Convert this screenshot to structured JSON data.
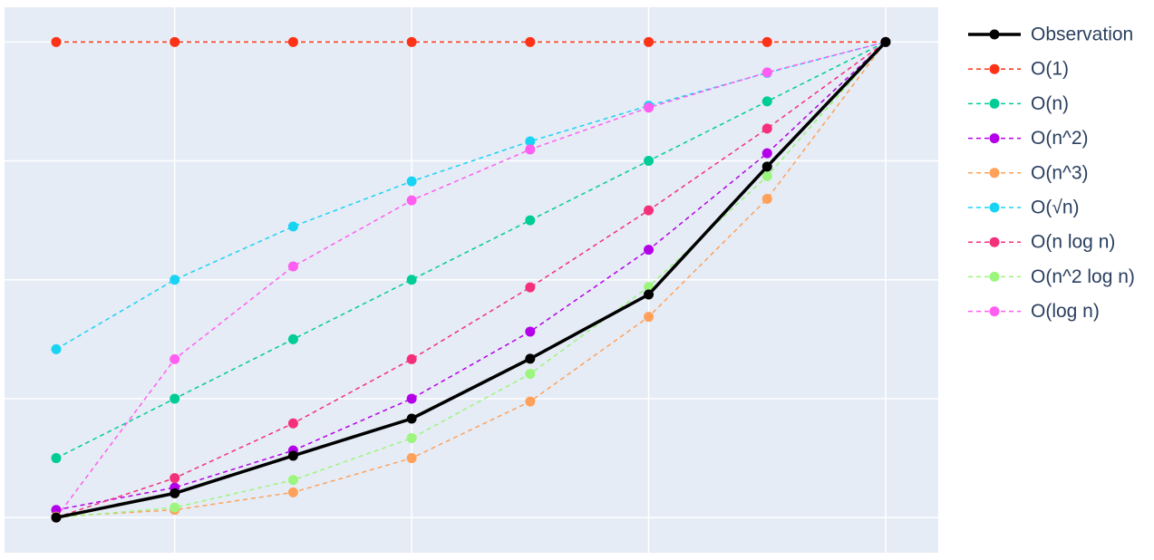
{
  "chart_data": {
    "type": "line",
    "x": [
      1,
      2,
      3,
      4,
      5,
      6,
      7,
      8
    ],
    "xlim": [
      0.564,
      8.444
    ],
    "xticks": [
      2,
      4,
      6,
      8
    ],
    "ylim": [
      -0.074,
      1.073
    ],
    "yticks": [
      0,
      0.25,
      0.5,
      0.75,
      1
    ],
    "grid": true,
    "legend": "right",
    "series": [
      {
        "name": "Observation",
        "color": "#000000",
        "dash": "solid",
        "values": [
          0,
          0.051,
          0.13,
          0.208,
          0.334,
          0.469,
          0.738,
          1
        ]
      },
      {
        "name": "O(1)",
        "color": "#fd3216",
        "dash": "dash",
        "values": [
          1,
          1,
          1,
          1,
          1,
          1,
          1,
          1
        ]
      },
      {
        "name": "O(n)",
        "color": "#00cc96",
        "dash": "dash",
        "values": [
          0.125,
          0.25,
          0.375,
          0.5,
          0.625,
          0.75,
          0.875,
          1
        ]
      },
      {
        "name": "O(n^2)",
        "color": "#b400e8",
        "dash": "dash",
        "values": [
          0.016,
          0.063,
          0.141,
          0.25,
          0.391,
          0.563,
          0.766,
          1
        ]
      },
      {
        "name": "O(n^3)",
        "color": "#ffa15a",
        "dash": "dash",
        "values": [
          0.002,
          0.016,
          0.053,
          0.125,
          0.244,
          0.422,
          0.67,
          1
        ]
      },
      {
        "name": "O(√n)",
        "color": "#19d3f3",
        "dash": "dash",
        "values": [
          0.354,
          0.5,
          0.612,
          0.707,
          0.791,
          0.866,
          0.935,
          1
        ]
      },
      {
        "name": "O(n log n)",
        "color": "#f5307a",
        "dash": "dash",
        "values": [
          0,
          0.083,
          0.198,
          0.333,
          0.484,
          0.646,
          0.818,
          1
        ]
      },
      {
        "name": "O(n^2 log n)",
        "color": "#9cf57c",
        "dash": "dash",
        "values": [
          0,
          0.021,
          0.079,
          0.167,
          0.302,
          0.485,
          0.718,
          1
        ]
      },
      {
        "name": "O(log n)",
        "color": "#ff5ef0",
        "dash": "dash",
        "values": [
          0,
          0.333,
          0.528,
          0.667,
          0.774,
          0.862,
          0.936,
          1
        ]
      }
    ]
  }
}
